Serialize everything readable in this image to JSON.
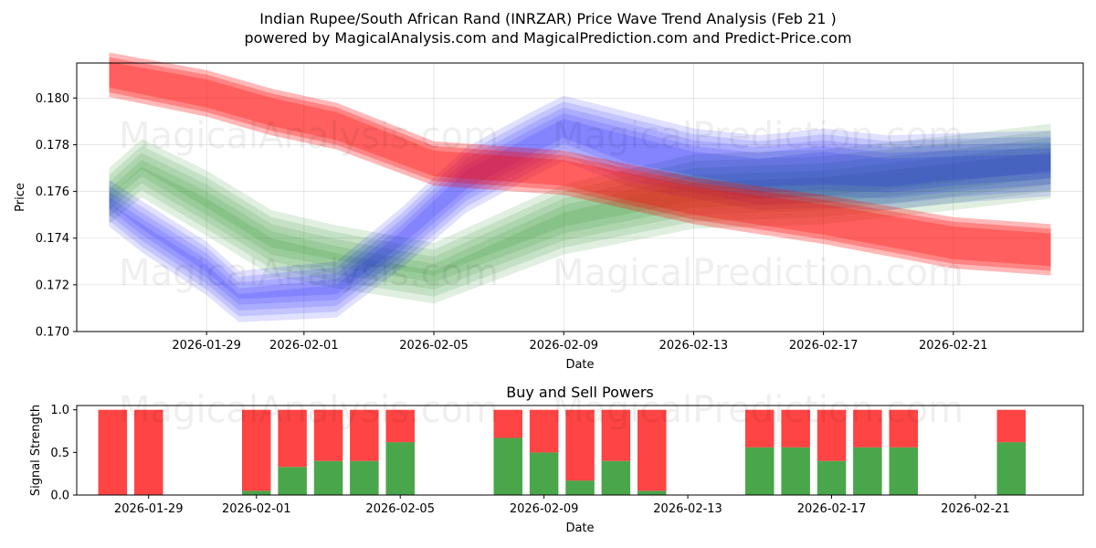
{
  "header": {
    "title_line1": "Indian Rupee/South African Rand (INRZAR) Price Wave Trend Analysis (Feb 21 )",
    "title_line2": "powered by MagicalAnalysis.com and MagicalPrediction.com and Predict-Price.com"
  },
  "watermarks": {
    "top_left": "MagicalAnalysis.com",
    "top_right": "MagicalPrediction.com",
    "mid_left": "MagicalAnalysis.com",
    "mid_right": "MagicalPrediction.com",
    "bottom_left": "MagicalAnalysis.com",
    "bottom_right": "MagicalPrediction.com"
  },
  "colors": {
    "red": "#ff0000",
    "green": "#228b22",
    "blue": "#0000ff",
    "buy": "#4aa64a",
    "sell": "#ff4444"
  },
  "chart_data": [
    {
      "type": "area",
      "title": "",
      "xlabel": "Date",
      "ylabel": "Price",
      "xlim": [
        "2026-01-25",
        "2026-02-25"
      ],
      "ylim": [
        0.17,
        0.1815
      ],
      "xticks": [
        "2026-01-29",
        "2026-02-01",
        "2026-02-05",
        "2026-02-09",
        "2026-02-13",
        "2026-02-17",
        "2026-02-21"
      ],
      "yticks": [
        0.17,
        0.172,
        0.174,
        0.176,
        0.178,
        0.18
      ],
      "ytick_labels": [
        "0.170",
        "0.172",
        "0.174",
        "0.176",
        "0.178",
        "0.180"
      ],
      "series": [
        {
          "name": "Red wave band",
          "color": "red",
          "x": [
            "2026-01-26",
            "2026-01-29",
            "2026-01-31",
            "2026-02-02",
            "2026-02-05",
            "2026-02-09",
            "2026-02-13",
            "2026-02-17",
            "2026-02-21",
            "2026-02-24"
          ],
          "center": [
            0.181,
            0.1802,
            0.1794,
            0.1788,
            0.1772,
            0.1768,
            0.1756,
            0.1748,
            0.1738,
            0.1735
          ],
          "width": [
            0.0015,
            0.0016,
            0.0016,
            0.0016,
            0.0015,
            0.0015,
            0.0016,
            0.0017,
            0.0018,
            0.0018
          ]
        },
        {
          "name": "Green wave band",
          "color": "green",
          "x": [
            "2026-01-26",
            "2026-01-27",
            "2026-01-29",
            "2026-01-31",
            "2026-02-02",
            "2026-02-05",
            "2026-02-09",
            "2026-02-13",
            "2026-02-17",
            "2026-02-21",
            "2026-02-24"
          ],
          "center": [
            0.1758,
            0.177,
            0.1755,
            0.1738,
            0.1732,
            0.1725,
            0.1748,
            0.176,
            0.1762,
            0.1768,
            0.1773
          ],
          "width": [
            0.0012,
            0.0013,
            0.0016,
            0.0016,
            0.0015,
            0.0014,
            0.0018,
            0.002,
            0.002,
            0.002,
            0.002
          ]
        },
        {
          "name": "Blue wave band",
          "color": "blue",
          "x": [
            "2026-01-26",
            "2026-01-27",
            "2026-01-29",
            "2026-01-30",
            "2026-02-02",
            "2026-02-04",
            "2026-02-06",
            "2026-02-08",
            "2026-02-09",
            "2026-02-11",
            "2026-02-13",
            "2026-02-15",
            "2026-02-17",
            "2026-02-19",
            "2026-02-21",
            "2026-02-24"
          ],
          "center": [
            0.1755,
            0.1745,
            0.1727,
            0.1715,
            0.1718,
            0.174,
            0.1765,
            0.178,
            0.1787,
            0.1778,
            0.1772,
            0.1768,
            0.177,
            0.1768,
            0.177,
            0.1772
          ],
          "width": [
            0.001,
            0.0012,
            0.0013,
            0.0012,
            0.0014,
            0.0016,
            0.0018,
            0.0018,
            0.0018,
            0.0022,
            0.002,
            0.0022,
            0.0024,
            0.0022,
            0.002,
            0.0018
          ]
        }
      ]
    },
    {
      "type": "bar",
      "title": "Buy and Sell Powers",
      "xlabel": "Date",
      "ylabel": "Signal Strength",
      "ylim": [
        0,
        1.05
      ],
      "yticks": [
        0.0,
        0.5,
        1.0
      ],
      "ytick_labels": [
        "0.0",
        "0.5",
        "1.0"
      ],
      "xlim": [
        "2026-01-27",
        "2026-02-24"
      ],
      "xticks": [
        "2026-01-29",
        "2026-02-01",
        "2026-02-05",
        "2026-02-09",
        "2026-02-13",
        "2026-02-17",
        "2026-02-21"
      ],
      "categories": [
        "2026-01-28",
        "2026-01-29",
        "2026-02-01",
        "2026-02-02",
        "2026-02-03",
        "2026-02-04",
        "2026-02-05",
        "2026-02-08",
        "2026-02-09",
        "2026-02-10",
        "2026-02-11",
        "2026-02-12",
        "2026-02-15",
        "2026-02-16",
        "2026-02-17",
        "2026-02-18",
        "2026-02-19",
        "2026-02-22"
      ],
      "series": [
        {
          "name": "Buy",
          "color": "buy",
          "values": [
            0.0,
            0.0,
            0.05,
            0.33,
            0.4,
            0.4,
            0.62,
            0.67,
            0.5,
            0.17,
            0.4,
            0.05,
            0.56,
            0.56,
            0.4,
            0.56,
            0.56,
            0.62
          ]
        },
        {
          "name": "Sell",
          "color": "sell",
          "values": [
            1.0,
            1.0,
            0.95,
            0.67,
            0.6,
            0.6,
            0.38,
            0.33,
            0.5,
            0.83,
            0.6,
            0.95,
            0.44,
            0.44,
            0.6,
            0.44,
            0.44,
            0.38
          ]
        }
      ]
    }
  ]
}
